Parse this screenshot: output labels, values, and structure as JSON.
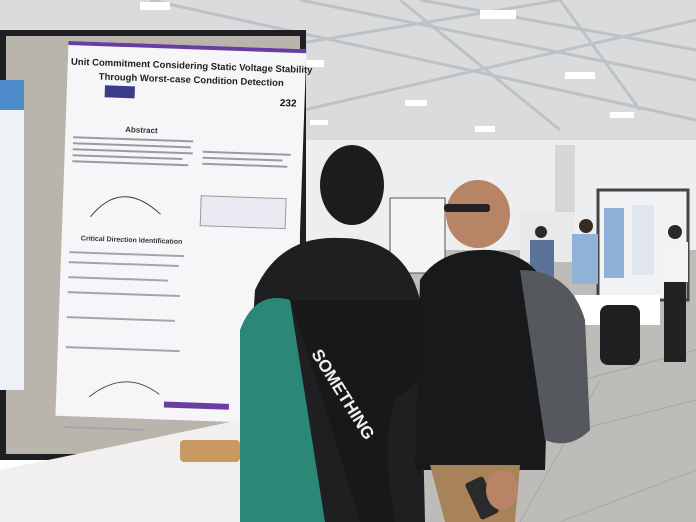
{
  "poster": {
    "title": [
      "Unit Commitment Considering Static Voltage Stability",
      "Through Worst-case Condition Detection"
    ],
    "number": "232",
    "sections": [
      "Abstract",
      "Critical Direction Identification"
    ]
  },
  "shirt_text": "SOMETHING"
}
